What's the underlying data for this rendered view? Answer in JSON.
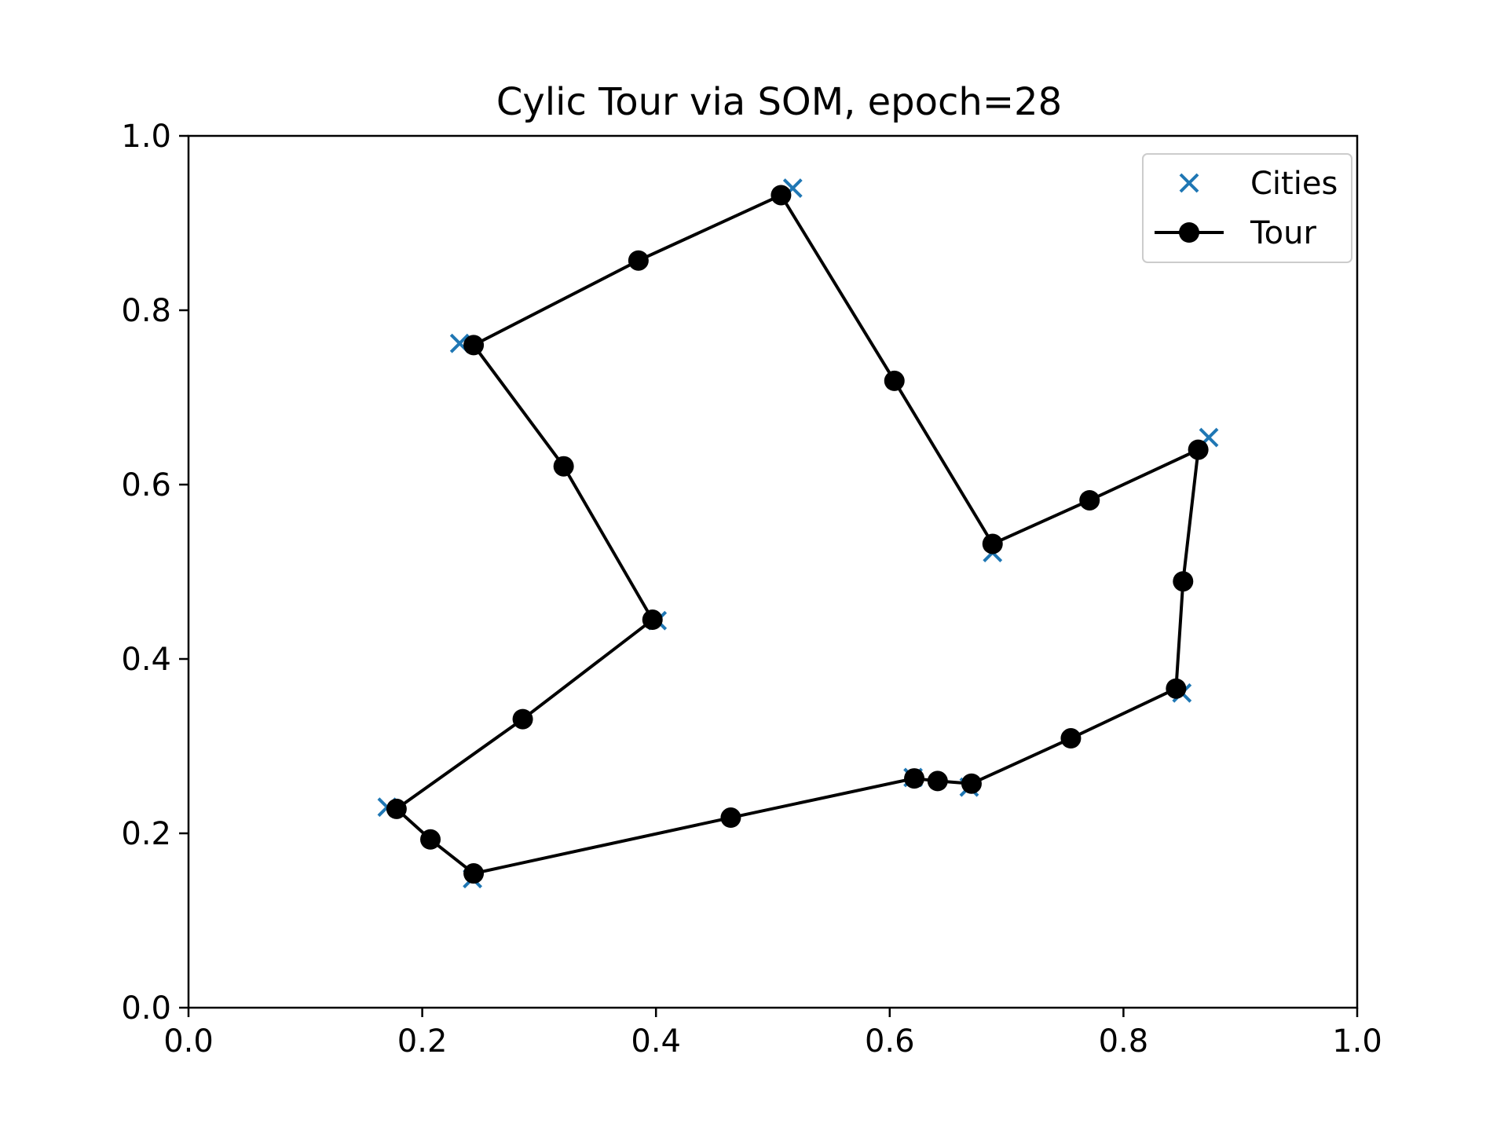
{
  "chart_data": {
    "type": "line",
    "title": "Cylic Tour via SOM, epoch=28",
    "xlabel": "",
    "ylabel": "",
    "xlim": [
      0,
      1
    ],
    "ylim": [
      0,
      1
    ],
    "grid": false,
    "legend_position": "top-right",
    "x_ticks": [
      "0.0",
      "0.2",
      "0.4",
      "0.6",
      "0.8",
      "1.0"
    ],
    "y_ticks": [
      "0.0",
      "0.2",
      "0.4",
      "0.6",
      "0.8",
      "1.0"
    ],
    "series": [
      {
        "name": "Cities",
        "style": "scatter",
        "marker": "x",
        "color": "#1f77b4",
        "points": [
          {
            "x": 0.517,
            "y": 0.94
          },
          {
            "x": 0.232,
            "y": 0.762
          },
          {
            "x": 0.873,
            "y": 0.654
          },
          {
            "x": 0.688,
            "y": 0.522
          },
          {
            "x": 0.401,
            "y": 0.444
          },
          {
            "x": 0.85,
            "y": 0.361
          },
          {
            "x": 0.62,
            "y": 0.264
          },
          {
            "x": 0.668,
            "y": 0.253
          },
          {
            "x": 0.17,
            "y": 0.23
          },
          {
            "x": 0.243,
            "y": 0.148
          }
        ]
      },
      {
        "name": "Tour",
        "style": "line-marker",
        "marker": "o",
        "color": "#000000",
        "points": [
          {
            "x": 0.507,
            "y": 0.932
          },
          {
            "x": 0.385,
            "y": 0.857
          },
          {
            "x": 0.244,
            "y": 0.76
          },
          {
            "x": 0.321,
            "y": 0.621
          },
          {
            "x": 0.397,
            "y": 0.445
          },
          {
            "x": 0.286,
            "y": 0.331
          },
          {
            "x": 0.178,
            "y": 0.228
          },
          {
            "x": 0.207,
            "y": 0.193
          },
          {
            "x": 0.244,
            "y": 0.154
          },
          {
            "x": 0.464,
            "y": 0.218
          },
          {
            "x": 0.621,
            "y": 0.263
          },
          {
            "x": 0.641,
            "y": 0.26
          },
          {
            "x": 0.67,
            "y": 0.257
          },
          {
            "x": 0.755,
            "y": 0.309
          },
          {
            "x": 0.845,
            "y": 0.366
          },
          {
            "x": 0.851,
            "y": 0.489
          },
          {
            "x": 0.864,
            "y": 0.64
          },
          {
            "x": 0.771,
            "y": 0.582
          },
          {
            "x": 0.688,
            "y": 0.532
          },
          {
            "x": 0.604,
            "y": 0.719
          }
        ],
        "closed": true
      }
    ]
  }
}
